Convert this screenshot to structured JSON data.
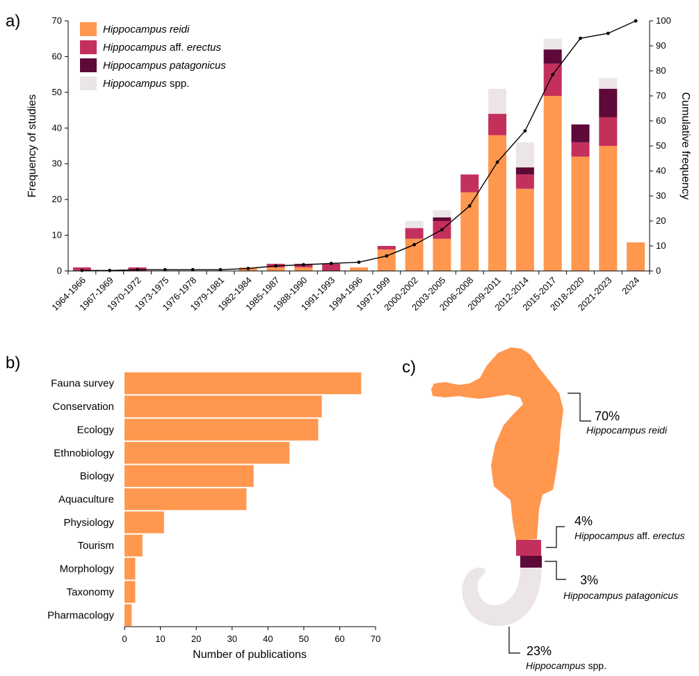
{
  "panels": {
    "a": "a)",
    "b": "b)",
    "c": "c)"
  },
  "chart_data": [
    {
      "type": "bar",
      "stacked": true,
      "xlabel": "",
      "ylabel": "Frequency of studies",
      "y2label": "Cumulative frequency",
      "ylim": [
        0,
        70
      ],
      "y2lim": [
        0,
        100
      ],
      "yticks": [
        "0",
        "10",
        "20",
        "30",
        "40",
        "50",
        "60",
        "70"
      ],
      "y2ticks": [
        "0",
        "10",
        "20",
        "30",
        "40",
        "50",
        "60",
        "70",
        "80",
        "90",
        "100"
      ],
      "categories": [
        "1964-1966",
        "1967-1969",
        "1970-1972",
        "1973-1975",
        "1976-1978",
        "1979-1981",
        "1982-1984",
        "1985-1987",
        "1988-1990",
        "1991-1993",
        "1994-1996",
        "1997-1999",
        "2000-2002",
        "2003-2005",
        "2006-2008",
        "2009-2011",
        "2012-2014",
        "2015-2017",
        "2018-2020",
        "2021-2023",
        "2024"
      ],
      "legend_position": "top-left",
      "series": [
        {
          "name_parts": [
            {
              "t": "Hippocampus reidi",
              "i": true
            }
          ],
          "color": "#FF974F",
          "values": [
            0,
            0,
            0,
            0,
            0,
            0,
            1,
            1,
            1,
            0,
            1,
            6,
            9,
            9,
            22,
            38,
            23,
            49,
            32,
            35,
            8
          ]
        },
        {
          "name_parts": [
            {
              "t": "Hippocampus",
              "i": true
            },
            {
              "t": " aff. ",
              "i": false
            },
            {
              "t": "erectus",
              "i": true
            }
          ],
          "color": "#C4305C",
          "values": [
            1,
            0,
            1,
            0,
            0,
            0,
            0,
            1,
            1,
            2,
            0,
            1,
            3,
            5,
            5,
            6,
            4,
            9,
            4,
            8,
            0
          ]
        },
        {
          "name_parts": [
            {
              "t": "Hippocampus patagonicus",
              "i": true
            }
          ],
          "color": "#5E0938",
          "values": [
            0,
            0,
            0,
            0,
            0,
            0,
            0,
            0,
            0,
            0,
            0,
            0,
            0,
            1,
            0,
            0,
            2,
            4,
            5,
            8,
            0
          ]
        },
        {
          "name_parts": [
            {
              "t": "Hippocampus",
              "i": true
            },
            {
              "t": " spp.",
              "i": false
            }
          ],
          "color": "#ECE5E8",
          "values": [
            0,
            0,
            0,
            0,
            0,
            0,
            0,
            0,
            0,
            0,
            0,
            0,
            2,
            2,
            0,
            7,
            7,
            3,
            0,
            3,
            0
          ]
        }
      ],
      "cumulative": [
        0.2,
        0.2,
        0.5,
        0.5,
        0.5,
        0.5,
        1.0,
        2.0,
        2.5,
        3.0,
        3.5,
        6.0,
        10.5,
        16.5,
        26.0,
        43.5,
        56.0,
        78.5,
        93.0,
        95.0,
        100.0
      ]
    },
    {
      "type": "bar",
      "orientation": "horizontal",
      "xlabel": "Number of publications",
      "ylabel": "",
      "xlim": [
        0,
        70
      ],
      "xticks": [
        "0",
        "10",
        "20",
        "30",
        "40",
        "50",
        "60",
        "70"
      ],
      "color": "#FF974F",
      "categories": [
        "Fauna survey",
        "Conservation",
        "Ecology",
        "Ethnobiology",
        "Biology",
        "Aquaculture",
        "Physiology",
        "Tourism",
        "Morphology",
        "Taxonomy",
        "Pharmacology"
      ],
      "values": [
        66,
        55,
        54,
        46,
        36,
        34,
        11,
        5,
        3,
        3,
        2
      ]
    },
    {
      "type": "pie",
      "note": "seahorse-shaped proportional figure",
      "slices": [
        {
          "pct": "70%",
          "value": 70,
          "color": "#FF974F",
          "label_parts": [
            {
              "t": "Hippocampus reidi",
              "i": true
            }
          ]
        },
        {
          "pct": "4%",
          "value": 4,
          "color": "#C4305C",
          "label_parts": [
            {
              "t": "Hippocampus",
              "i": true
            },
            {
              "t": " aff. ",
              "i": false
            },
            {
              "t": "erectus",
              "i": true
            }
          ]
        },
        {
          "pct": "3%",
          "value": 3,
          "color": "#5E0938",
          "label_parts": [
            {
              "t": "Hippocampus patagonicus",
              "i": true
            }
          ]
        },
        {
          "pct": "23%",
          "value": 23,
          "color": "#ECE5E8",
          "label_parts": [
            {
              "t": "Hippocampus",
              "i": true
            },
            {
              "t": " spp.",
              "i": false
            }
          ]
        }
      ]
    }
  ]
}
